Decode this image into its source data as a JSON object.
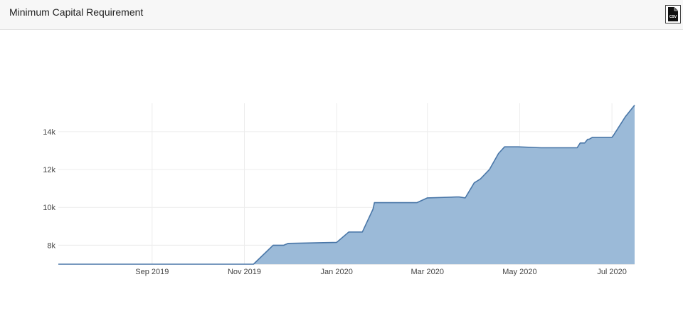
{
  "header": {
    "title": "Minimum Capital Requirement",
    "csv_icon": "csv-download-icon",
    "csv_label": "CSV"
  },
  "colors": {
    "line": "#4a77a8",
    "fill": "#9bbad8",
    "grid": "#ececec"
  },
  "chart_data": {
    "type": "area",
    "title": "",
    "xlabel": "",
    "ylabel": "",
    "x_range": [
      "2019-07-01",
      "2020-07-16"
    ],
    "ylim": [
      7000,
      15500
    ],
    "grid": true,
    "x_ticks": [
      {
        "date": "2019-09-01",
        "label": "Sep 2019"
      },
      {
        "date": "2019-11-01",
        "label": "Nov 2019"
      },
      {
        "date": "2020-01-01",
        "label": "Jan 2020"
      },
      {
        "date": "2020-03-01",
        "label": "Mar 2020"
      },
      {
        "date": "2020-05-01",
        "label": "May 2020"
      },
      {
        "date": "2020-07-01",
        "label": "Jul 2020"
      }
    ],
    "y_ticks": [
      {
        "value": 8000,
        "label": "8k"
      },
      {
        "value": 10000,
        "label": "10k"
      },
      {
        "value": 12000,
        "label": "12k"
      },
      {
        "value": 14000,
        "label": "14k"
      }
    ],
    "series": [
      {
        "x": [
          "2019-07-01",
          "2019-11-07",
          "2019-11-20",
          "2019-11-27",
          "2019-11-30",
          "2020-01-01",
          "2020-01-09",
          "2020-01-18",
          "2020-01-25",
          "2020-01-26",
          "2020-02-23",
          "2020-03-01",
          "2020-03-20",
          "2020-03-22",
          "2020-03-26",
          "2020-04-01",
          "2020-04-05",
          "2020-04-11",
          "2020-04-17",
          "2020-04-21",
          "2020-04-30",
          "2020-05-15",
          "2020-06-08",
          "2020-06-10",
          "2020-06-13",
          "2020-06-15",
          "2020-06-16",
          "2020-06-18",
          "2020-07-01",
          "2020-07-02",
          "2020-07-10",
          "2020-07-16"
        ],
        "y": [
          7000,
          7000,
          8000,
          8000,
          8100,
          8150,
          8700,
          8700,
          9900,
          10250,
          10250,
          10500,
          10550,
          10550,
          10500,
          11300,
          11500,
          12000,
          12850,
          13200,
          13200,
          13150,
          13150,
          13400,
          13400,
          13600,
          13600,
          13700,
          13700,
          13800,
          14800,
          15400
        ]
      }
    ]
  }
}
